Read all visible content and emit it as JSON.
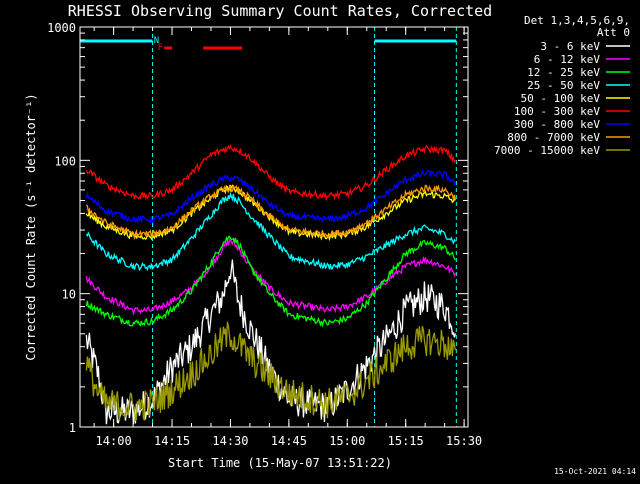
{
  "chart_data": {
    "type": "line",
    "title": "RHESSI Observing Summary Count Rates, Corrected",
    "xlabel": "Start Time (15-May-07 13:51:22)",
    "ylabel": "Corrected Count Rate (s⁻¹ detector⁻¹)",
    "y_scale": "log",
    "ylim": [
      1,
      1000
    ],
    "y_ticks": [
      {
        "value": 1,
        "label": "1"
      },
      {
        "value": 10,
        "label": "10"
      },
      {
        "value": 100,
        "label": "100"
      },
      {
        "value": 1000,
        "label": "1000"
      }
    ],
    "xlim": [
      "13:51:22",
      "15:31:00"
    ],
    "x_ticks": [
      "14:00",
      "14:15",
      "14:30",
      "14:45",
      "15:00",
      "15:15",
      "15:30"
    ],
    "legend_header": [
      "Det 1,3,4,5,6,9,",
      "Att 0"
    ],
    "legend_position": "right",
    "timestamp": "15-Oct-2021 04:14",
    "night_markers": {
      "solid_bars": [
        [
          "13:51:22",
          "14:10:00"
        ],
        [
          "15:07:00",
          "15:28:00"
        ]
      ],
      "dashed_lines": [
        "14:10:00",
        "15:07:00",
        "15:28:00"
      ]
    },
    "flag_labels": [
      {
        "text": "N",
        "time": "14:11"
      },
      {
        "text": "F",
        "time": "14:12"
      }
    ],
    "flag_bars": [
      [
        "14:13",
        "14:15"
      ],
      [
        "14:23",
        "14:33"
      ]
    ],
    "series": [
      {
        "name": "3 - 6 keV",
        "color": "#ffffff",
        "points": [
          [
            "13:53",
            4.5
          ],
          [
            "13:56",
            2.5
          ],
          [
            "13:58",
            1.3
          ],
          [
            "14:05",
            1.3
          ],
          [
            "14:10",
            1.6
          ],
          [
            "14:15",
            2.8
          ],
          [
            "14:20",
            4.0
          ],
          [
            "14:25",
            7.0
          ],
          [
            "14:28",
            9.5
          ],
          [
            "14:30",
            16
          ],
          [
            "14:32",
            9.0
          ],
          [
            "14:35",
            5.5
          ],
          [
            "14:40",
            2.7
          ],
          [
            "14:45",
            1.6
          ],
          [
            "14:55",
            1.4
          ],
          [
            "15:00",
            1.9
          ],
          [
            "15:05",
            2.9
          ],
          [
            "15:10",
            4.5
          ],
          [
            "15:15",
            7.5
          ],
          [
            "15:20",
            9.5
          ],
          [
            "15:25",
            8.0
          ],
          [
            "15:28",
            5.5
          ]
        ]
      },
      {
        "name": "6 - 12 keV",
        "color": "#ff00ff",
        "points": [
          [
            "13:53",
            13
          ],
          [
            "13:58",
            9.5
          ],
          [
            "14:05",
            7.5
          ],
          [
            "14:10",
            7.5
          ],
          [
            "14:15",
            8.8
          ],
          [
            "14:20",
            11
          ],
          [
            "14:25",
            16
          ],
          [
            "14:28",
            22
          ],
          [
            "14:30",
            25
          ],
          [
            "14:32",
            22
          ],
          [
            "14:35",
            16
          ],
          [
            "14:40",
            11
          ],
          [
            "14:45",
            8.5
          ],
          [
            "14:55",
            7.5
          ],
          [
            "15:00",
            8.0
          ],
          [
            "15:05",
            9.5
          ],
          [
            "15:10",
            12.5
          ],
          [
            "15:15",
            16
          ],
          [
            "15:20",
            18
          ],
          [
            "15:25",
            16
          ],
          [
            "15:28",
            14
          ]
        ]
      },
      {
        "name": "12 - 25 keV",
        "color": "#00ff00",
        "points": [
          [
            "13:53",
            8.5
          ],
          [
            "13:58",
            7.0
          ],
          [
            "14:05",
            6.0
          ],
          [
            "14:10",
            6.2
          ],
          [
            "14:15",
            7.5
          ],
          [
            "14:20",
            10.5
          ],
          [
            "14:25",
            17
          ],
          [
            "14:28",
            24
          ],
          [
            "14:30",
            27
          ],
          [
            "14:32",
            24
          ],
          [
            "14:35",
            16
          ],
          [
            "14:40",
            10
          ],
          [
            "14:45",
            7.0
          ],
          [
            "14:55",
            6.0
          ],
          [
            "15:00",
            6.5
          ],
          [
            "15:05",
            8.5
          ],
          [
            "15:10",
            13
          ],
          [
            "15:15",
            20
          ],
          [
            "15:20",
            24
          ],
          [
            "15:25",
            22
          ],
          [
            "15:28",
            18
          ]
        ]
      },
      {
        "name": "25 - 50 keV",
        "color": "#00ffff",
        "points": [
          [
            "13:53",
            28
          ],
          [
            "13:58",
            20
          ],
          [
            "14:05",
            16
          ],
          [
            "14:10",
            16
          ],
          [
            "14:15",
            18
          ],
          [
            "14:20",
            26
          ],
          [
            "14:25",
            39
          ],
          [
            "14:28",
            50
          ],
          [
            "14:30",
            55
          ],
          [
            "14:32",
            50
          ],
          [
            "14:35",
            39
          ],
          [
            "14:40",
            27
          ],
          [
            "14:45",
            19
          ],
          [
            "14:55",
            16
          ],
          [
            "15:00",
            16.5
          ],
          [
            "15:05",
            19
          ],
          [
            "15:10",
            23
          ],
          [
            "15:15",
            28
          ],
          [
            "15:20",
            31
          ],
          [
            "15:25",
            28
          ],
          [
            "15:28",
            24
          ]
        ]
      },
      {
        "name": "50 - 100 keV",
        "color": "#ffff00",
        "points": [
          [
            "13:53",
            40
          ],
          [
            "13:58",
            32
          ],
          [
            "14:05",
            27
          ],
          [
            "14:10",
            27
          ],
          [
            "14:15",
            30
          ],
          [
            "14:20",
            40
          ],
          [
            "14:25",
            52
          ],
          [
            "14:28",
            60
          ],
          [
            "14:30",
            62
          ],
          [
            "14:32",
            60
          ],
          [
            "14:35",
            50
          ],
          [
            "14:40",
            38
          ],
          [
            "14:45",
            29
          ],
          [
            "14:55",
            27
          ],
          [
            "15:00",
            28
          ],
          [
            "15:05",
            32
          ],
          [
            "15:10",
            40
          ],
          [
            "15:15",
            50
          ],
          [
            "15:20",
            56
          ],
          [
            "15:25",
            54
          ],
          [
            "15:28",
            48
          ]
        ]
      },
      {
        "name": "100 - 300 keV",
        "color": "#ff0000",
        "points": [
          [
            "13:53",
            85
          ],
          [
            "13:58",
            65
          ],
          [
            "14:05",
            54
          ],
          [
            "14:10",
            54
          ],
          [
            "14:15",
            60
          ],
          [
            "14:20",
            80
          ],
          [
            "14:25",
            110
          ],
          [
            "14:28",
            120
          ],
          [
            "14:30",
            125
          ],
          [
            "14:32",
            120
          ],
          [
            "14:35",
            105
          ],
          [
            "14:40",
            75
          ],
          [
            "14:45",
            58
          ],
          [
            "14:55",
            54
          ],
          [
            "15:00",
            56
          ],
          [
            "15:05",
            65
          ],
          [
            "15:10",
            85
          ],
          [
            "15:15",
            108
          ],
          [
            "15:20",
            122
          ],
          [
            "15:25",
            118
          ],
          [
            "15:28",
            98
          ]
        ]
      },
      {
        "name": "300 - 800 keV",
        "color": "#0000ff",
        "points": [
          [
            "13:53",
            54
          ],
          [
            "13:58",
            42
          ],
          [
            "14:05",
            36
          ],
          [
            "14:10",
            36
          ],
          [
            "14:15",
            39
          ],
          [
            "14:20",
            52
          ],
          [
            "14:25",
            65
          ],
          [
            "14:28",
            72
          ],
          [
            "14:30",
            74
          ],
          [
            "14:32",
            72
          ],
          [
            "14:35",
            63
          ],
          [
            "14:40",
            47
          ],
          [
            "14:45",
            38
          ],
          [
            "14:55",
            36
          ],
          [
            "15:00",
            38
          ],
          [
            "15:05",
            44
          ],
          [
            "15:10",
            56
          ],
          [
            "15:15",
            72
          ],
          [
            "15:20",
            80
          ],
          [
            "15:25",
            78
          ],
          [
            "15:28",
            66
          ]
        ]
      },
      {
        "name": "800 - 7000 keV",
        "color": "#ff9900",
        "points": [
          [
            "13:53",
            44
          ],
          [
            "13:58",
            34
          ],
          [
            "14:05",
            28
          ],
          [
            "14:10",
            28
          ],
          [
            "14:15",
            31
          ],
          [
            "14:20",
            42
          ],
          [
            "14:25",
            54
          ],
          [
            "14:28",
            60
          ],
          [
            "14:30",
            62
          ],
          [
            "14:32",
            60
          ],
          [
            "14:35",
            52
          ],
          [
            "14:40",
            38
          ],
          [
            "14:45",
            30
          ],
          [
            "14:55",
            28
          ],
          [
            "15:00",
            29
          ],
          [
            "15:05",
            34
          ],
          [
            "15:10",
            43
          ],
          [
            "15:15",
            55
          ],
          [
            "15:20",
            62
          ],
          [
            "15:25",
            60
          ],
          [
            "15:28",
            52
          ]
        ]
      },
      {
        "name": "7000 - 15000 keV",
        "color": "#999900",
        "points": [
          [
            "13:53",
            3.0
          ],
          [
            "13:56",
            1.8
          ],
          [
            "13:58",
            1.5
          ],
          [
            "14:05",
            1.4
          ],
          [
            "14:10",
            1.5
          ],
          [
            "14:15",
            1.9
          ],
          [
            "14:20",
            2.5
          ],
          [
            "14:25",
            3.5
          ],
          [
            "14:28",
            4.5
          ],
          [
            "14:30",
            5.0
          ],
          [
            "14:32",
            4.2
          ],
          [
            "14:35",
            3.3
          ],
          [
            "14:40",
            2.4
          ],
          [
            "14:45",
            1.8
          ],
          [
            "14:55",
            1.5
          ],
          [
            "15:00",
            1.7
          ],
          [
            "15:05",
            2.2
          ],
          [
            "15:10",
            3.0
          ],
          [
            "15:15",
            4.0
          ],
          [
            "15:20",
            4.5
          ],
          [
            "15:25",
            4.2
          ],
          [
            "15:28",
            3.5
          ]
        ]
      }
    ]
  }
}
